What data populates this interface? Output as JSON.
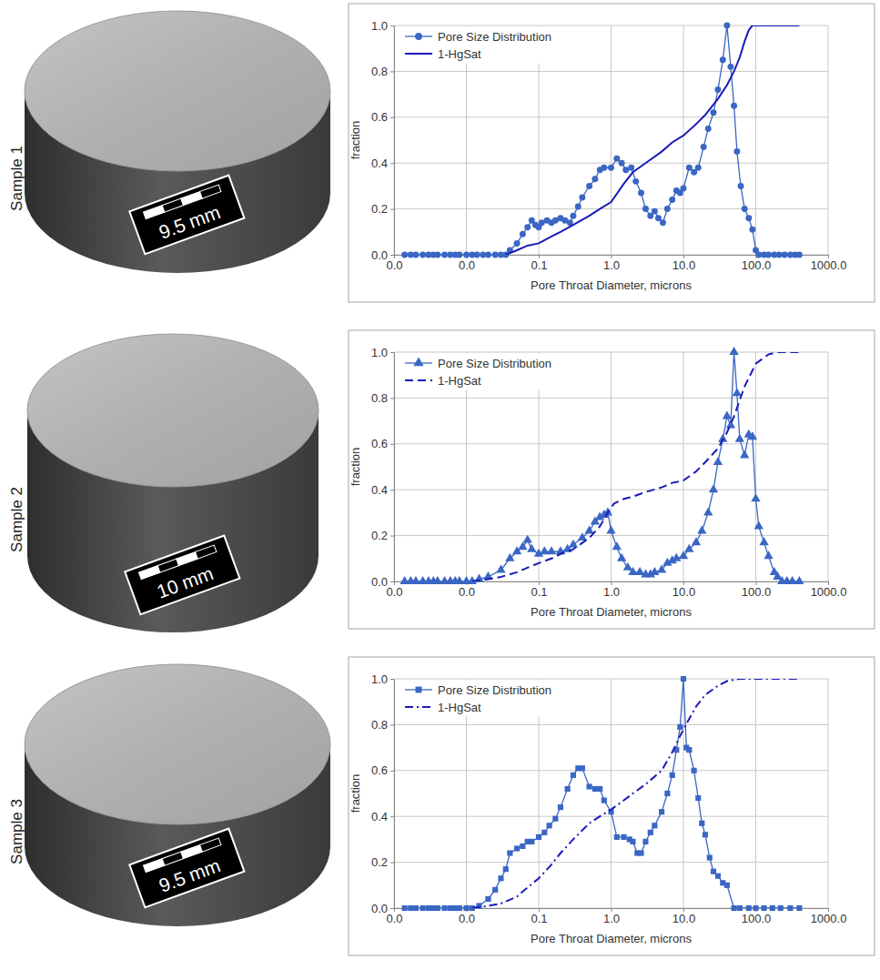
{
  "samples": [
    {
      "label": "Sample 1",
      "scale_bar": "9.5 mm"
    },
    {
      "label": "Sample 2",
      "scale_bar": "10 mm"
    },
    {
      "label": "Sample 3",
      "scale_bar": "9.5 mm"
    }
  ],
  "chart_data": [
    {
      "type": "line",
      "x_label": "Pore Throat Diameter, microns",
      "y_label": "fraction",
      "log": "x",
      "grid": true,
      "legend": "top-left",
      "xlim": [
        0.001,
        1000
      ],
      "xticks": [
        {
          "value": 0.001,
          "label": "0.0"
        },
        {
          "value": 0.01,
          "label": "0.0"
        },
        {
          "value": 0.1,
          "label": "0.1"
        },
        {
          "value": 1,
          "label": "1.0"
        },
        {
          "value": 10,
          "label": "10.0"
        },
        {
          "value": 100,
          "label": "100.0"
        },
        {
          "value": 1000,
          "label": "1000.0"
        }
      ],
      "ylim": [
        0,
        1
      ],
      "yticks": [
        {
          "value": 0,
          "label": "0.0"
        },
        0.2,
        0.4,
        0.6,
        0.8,
        {
          "value": 1,
          "label": "1.0"
        }
      ],
      "series": [
        {
          "name": "Pore Size Distribution",
          "color": "#3a66c4",
          "marker": "circle",
          "line_style": "solid",
          "x": [
            0.0014,
            0.0017,
            0.002,
            0.0025,
            0.003,
            0.0035,
            0.004,
            0.005,
            0.006,
            0.007,
            0.008,
            0.01,
            0.012,
            0.014,
            0.017,
            0.02,
            0.025,
            0.03,
            0.035,
            0.04,
            0.05,
            0.06,
            0.07,
            0.08,
            0.09,
            0.1,
            0.11,
            0.13,
            0.15,
            0.17,
            0.2,
            0.23,
            0.27,
            0.3,
            0.35,
            0.4,
            0.5,
            0.6,
            0.7,
            0.8,
            1,
            1.2,
            1.4,
            1.6,
            1.9,
            2.2,
            2.6,
            3,
            3.5,
            4,
            4.5,
            5.2,
            6,
            7,
            8,
            9,
            10,
            12,
            14,
            16,
            19,
            22,
            26,
            30,
            35,
            40,
            45,
            50,
            55,
            62,
            70,
            80,
            90,
            100,
            110,
            130,
            150,
            180,
            210,
            250,
            300,
            350,
            400
          ],
          "values": [
            0,
            0,
            0,
            0,
            0,
            0,
            0,
            0,
            0,
            0,
            0,
            0,
            0,
            0,
            0,
            0,
            0,
            0,
            0,
            0.02,
            0.05,
            0.09,
            0.12,
            0.15,
            0.13,
            0.12,
            0.14,
            0.15,
            0.14,
            0.15,
            0.16,
            0.15,
            0.14,
            0.17,
            0.21,
            0.25,
            0.3,
            0.33,
            0.37,
            0.38,
            0.38,
            0.42,
            0.4,
            0.37,
            0.38,
            0.32,
            0.27,
            0.2,
            0.17,
            0.19,
            0.16,
            0.14,
            0.2,
            0.24,
            0.28,
            0.27,
            0.29,
            0.38,
            0.36,
            0.38,
            0.47,
            0.55,
            0.62,
            0.72,
            0.85,
            1,
            0.82,
            0.65,
            0.45,
            0.3,
            0.2,
            0.16,
            0.11,
            0.02,
            0,
            0,
            0,
            0,
            0,
            0,
            0,
            0,
            0
          ]
        },
        {
          "name": "1-HgSat",
          "color": "#1a1ab8",
          "marker": "none",
          "line_style": "solid",
          "x": [
            0.035,
            0.05,
            0.07,
            0.1,
            0.15,
            0.2,
            0.3,
            0.5,
            0.7,
            1,
            1.5,
            2,
            3,
            5,
            7,
            10,
            15,
            20,
            30,
            40,
            50,
            60,
            70,
            80,
            90,
            100,
            200,
            400
          ],
          "values": [
            0,
            0.02,
            0.04,
            0.05,
            0.08,
            0.1,
            0.13,
            0.17,
            0.2,
            0.23,
            0.31,
            0.36,
            0.4,
            0.45,
            0.49,
            0.52,
            0.57,
            0.61,
            0.68,
            0.74,
            0.8,
            0.86,
            0.93,
            0.98,
            1,
            1,
            1,
            1
          ]
        }
      ]
    },
    {
      "type": "line",
      "x_label": "Pore Throat Diameter, microns",
      "y_label": "fraction",
      "log": "x",
      "grid": true,
      "legend": "top-left",
      "xlim": [
        0.001,
        1000
      ],
      "xticks": [
        {
          "value": 0.001,
          "label": "0.0"
        },
        {
          "value": 0.01,
          "label": "0.0"
        },
        {
          "value": 0.1,
          "label": "0.1"
        },
        {
          "value": 1,
          "label": "1.0"
        },
        {
          "value": 10,
          "label": "10.0"
        },
        {
          "value": 100,
          "label": "100.0"
        },
        {
          "value": 1000,
          "label": "1000.0"
        }
      ],
      "ylim": [
        0,
        1
      ],
      "yticks": [
        {
          "value": 0,
          "label": "0.0"
        },
        0.2,
        0.4,
        0.6,
        0.8,
        {
          "value": 1,
          "label": "1.0"
        }
      ],
      "series": [
        {
          "name": "Pore Size Distribution",
          "color": "#3a66c4",
          "marker": "triangle",
          "line_style": "solid",
          "x": [
            0.0014,
            0.0017,
            0.002,
            0.0025,
            0.003,
            0.0035,
            0.004,
            0.005,
            0.006,
            0.007,
            0.008,
            0.01,
            0.012,
            0.015,
            0.02,
            0.03,
            0.04,
            0.05,
            0.06,
            0.07,
            0.08,
            0.1,
            0.12,
            0.15,
            0.2,
            0.25,
            0.3,
            0.4,
            0.5,
            0.6,
            0.7,
            0.8,
            0.9,
            1,
            1.2,
            1.4,
            1.7,
            2,
            2.5,
            3,
            3.5,
            4,
            5,
            6,
            7,
            8,
            10,
            12,
            15,
            18,
            22,
            26,
            30,
            35,
            40,
            45,
            50,
            55,
            60,
            70,
            80,
            90,
            100,
            110,
            130,
            150,
            180,
            200,
            230,
            270,
            320,
            400
          ],
          "values": [
            0,
            0,
            0,
            0,
            0,
            0,
            0,
            0,
            0,
            0,
            0,
            0,
            0,
            0.01,
            0.02,
            0.05,
            0.1,
            0.13,
            0.15,
            0.18,
            0.14,
            0.12,
            0.13,
            0.13,
            0.13,
            0.14,
            0.16,
            0.19,
            0.22,
            0.26,
            0.28,
            0.29,
            0.3,
            0.22,
            0.15,
            0.1,
            0.06,
            0.04,
            0.04,
            0.03,
            0.03,
            0.04,
            0.05,
            0.08,
            0.09,
            0.1,
            0.11,
            0.14,
            0.17,
            0.22,
            0.3,
            0.4,
            0.52,
            0.62,
            0.72,
            0.68,
            1,
            0.82,
            0.62,
            0.55,
            0.64,
            0.63,
            0.36,
            0.24,
            0.17,
            0.11,
            0.04,
            0.02,
            0,
            0,
            0,
            0
          ]
        },
        {
          "name": "1-HgSat",
          "color": "#1a1ab8",
          "marker": "none",
          "line_style": "dashed",
          "x": [
            0.012,
            0.02,
            0.03,
            0.05,
            0.07,
            0.1,
            0.15,
            0.2,
            0.3,
            0.5,
            0.7,
            0.9,
            1.1,
            1.5,
            2,
            3,
            5,
            7,
            10,
            15,
            20,
            30,
            40,
            50,
            70,
            100,
            150,
            200,
            300,
            400
          ],
          "values": [
            0,
            0.01,
            0.02,
            0.04,
            0.06,
            0.08,
            0.1,
            0.12,
            0.14,
            0.19,
            0.24,
            0.3,
            0.34,
            0.36,
            0.37,
            0.39,
            0.41,
            0.43,
            0.44,
            0.48,
            0.52,
            0.58,
            0.65,
            0.72,
            0.85,
            0.95,
            0.99,
            1,
            1,
            1
          ]
        }
      ]
    },
    {
      "type": "line",
      "x_label": "Pore Throat Diameter, microns",
      "y_label": "fraction",
      "log": "x",
      "grid": true,
      "legend": "top-left",
      "xlim": [
        0.001,
        1000
      ],
      "xticks": [
        {
          "value": 0.001,
          "label": "0.0"
        },
        {
          "value": 0.01,
          "label": "0.0"
        },
        {
          "value": 0.1,
          "label": "0.1"
        },
        {
          "value": 1,
          "label": "1.0"
        },
        {
          "value": 10,
          "label": "10.0"
        },
        {
          "value": 100,
          "label": "100.0"
        },
        {
          "value": 1000,
          "label": "1000.0"
        }
      ],
      "ylim": [
        0,
        1
      ],
      "yticks": [
        {
          "value": 0,
          "label": "0.0"
        },
        0.2,
        0.4,
        0.6,
        0.8,
        {
          "value": 1,
          "label": "1.0"
        }
      ],
      "series": [
        {
          "name": "Pore Size Distribution",
          "color": "#3a66c4",
          "marker": "square",
          "line_style": "solid",
          "x": [
            0.0014,
            0.0017,
            0.002,
            0.0025,
            0.003,
            0.0035,
            0.004,
            0.005,
            0.006,
            0.007,
            0.008,
            0.01,
            0.012,
            0.015,
            0.02,
            0.025,
            0.03,
            0.035,
            0.04,
            0.05,
            0.06,
            0.07,
            0.08,
            0.1,
            0.12,
            0.14,
            0.17,
            0.2,
            0.25,
            0.3,
            0.35,
            0.4,
            0.5,
            0.6,
            0.7,
            0.8,
            1,
            1.2,
            1.5,
            1.8,
            2,
            2.3,
            2.6,
            3,
            3.5,
            4,
            5,
            6,
            7,
            8,
            9,
            10,
            11,
            12,
            14,
            16,
            18,
            20,
            23,
            26,
            30,
            35,
            40,
            50,
            60,
            80,
            100,
            130,
            170,
            220,
            300,
            400
          ],
          "values": [
            0,
            0,
            0,
            0,
            0,
            0,
            0,
            0,
            0,
            0,
            0,
            0,
            0,
            0.01,
            0.04,
            0.08,
            0.13,
            0.17,
            0.24,
            0.26,
            0.27,
            0.29,
            0.29,
            0.31,
            0.33,
            0.36,
            0.39,
            0.44,
            0.52,
            0.58,
            0.61,
            0.61,
            0.53,
            0.52,
            0.52,
            0.47,
            0.42,
            0.31,
            0.31,
            0.3,
            0.29,
            0.24,
            0.24,
            0.29,
            0.33,
            0.36,
            0.42,
            0.5,
            0.58,
            0.69,
            0.79,
            1,
            0.7,
            0.69,
            0.6,
            0.48,
            0.37,
            0.32,
            0.22,
            0.16,
            0.14,
            0.11,
            0.1,
            0,
            0,
            0,
            0,
            0,
            0,
            0,
            0,
            0
          ]
        },
        {
          "name": "1-HgSat",
          "color": "#1a1ab8",
          "marker": "none",
          "line_style": "dashdot",
          "x": [
            0.012,
            0.02,
            0.03,
            0.05,
            0.07,
            0.1,
            0.15,
            0.2,
            0.3,
            0.5,
            0.7,
            1,
            1.5,
            2,
            3,
            5,
            7,
            10,
            15,
            20,
            30,
            40,
            60,
            100,
            200,
            400
          ],
          "values": [
            0,
            0.01,
            0.02,
            0.05,
            0.09,
            0.13,
            0.19,
            0.24,
            0.3,
            0.37,
            0.4,
            0.43,
            0.47,
            0.5,
            0.54,
            0.6,
            0.68,
            0.78,
            0.88,
            0.93,
            0.97,
            0.99,
            1,
            1,
            1,
            1
          ]
        }
      ]
    }
  ]
}
